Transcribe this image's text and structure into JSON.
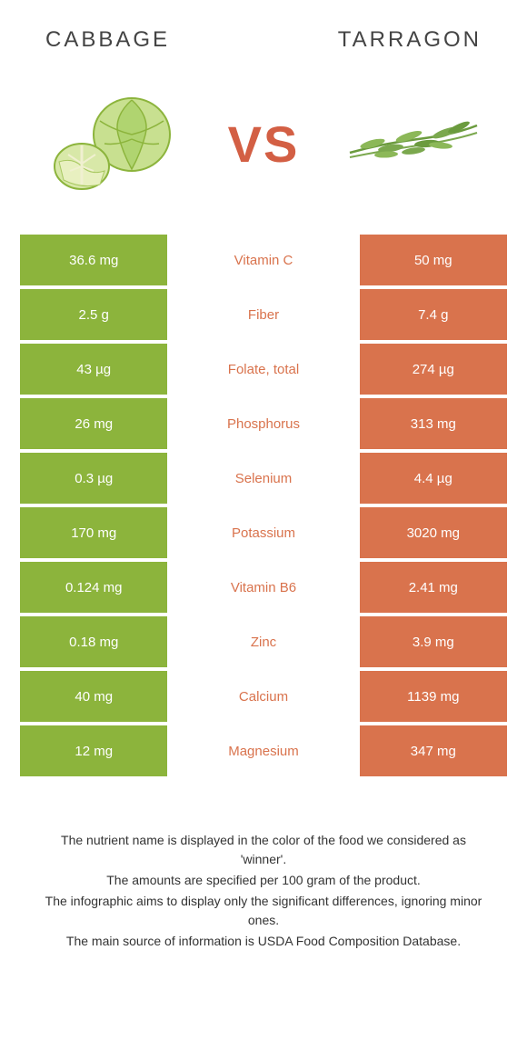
{
  "header": {
    "left_title": "Cabbage",
    "right_title": "Tarragon"
  },
  "vs_label": "VS",
  "colors": {
    "cabbage": "#8cb43c",
    "tarragon": "#d9734d",
    "cabbage_light": "#b8d968",
    "tarragon_green": "#6b9b3e"
  },
  "table": {
    "rows": [
      {
        "left": "36.6 mg",
        "label": "Vitamin C",
        "right": "50 mg",
        "winner": "tarragon"
      },
      {
        "left": "2.5 g",
        "label": "Fiber",
        "right": "7.4 g",
        "winner": "tarragon"
      },
      {
        "left": "43 µg",
        "label": "Folate, total",
        "right": "274 µg",
        "winner": "tarragon"
      },
      {
        "left": "26 mg",
        "label": "Phosphorus",
        "right": "313 mg",
        "winner": "tarragon"
      },
      {
        "left": "0.3 µg",
        "label": "Selenium",
        "right": "4.4 µg",
        "winner": "tarragon"
      },
      {
        "left": "170 mg",
        "label": "Potassium",
        "right": "3020 mg",
        "winner": "tarragon"
      },
      {
        "left": "0.124 mg",
        "label": "Vitamin B6",
        "right": "2.41 mg",
        "winner": "tarragon"
      },
      {
        "left": "0.18 mg",
        "label": "Zinc",
        "right": "3.9 mg",
        "winner": "tarragon"
      },
      {
        "left": "40 mg",
        "label": "Calcium",
        "right": "1139 mg",
        "winner": "tarragon"
      },
      {
        "left": "12 mg",
        "label": "Magnesium",
        "right": "347 mg",
        "winner": "tarragon"
      }
    ]
  },
  "footer": {
    "line1": "The nutrient name is displayed in the color of the food we considered as 'winner'.",
    "line2": "The amounts are specified per 100 gram of the product.",
    "line3": "The infographic aims to display only the significant differences, ignoring minor ones.",
    "line4": "The main source of information is USDA Food Composition Database."
  }
}
